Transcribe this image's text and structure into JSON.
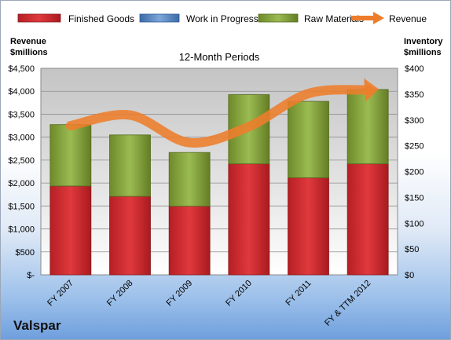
{
  "chart_data": {
    "type": "bar",
    "stacked": true,
    "title": "12-Month Periods",
    "company": "Valspar",
    "y_left_label": [
      "Revenue",
      "$millions"
    ],
    "y_right_label": [
      "Inventory",
      "$millions"
    ],
    "categories": [
      "FY 2007",
      "FY 2008",
      "FY 2009",
      "FY 2010",
      "FY 2011",
      "FY & TTM 2012"
    ],
    "y_left": {
      "min": 0,
      "max": 4500,
      "step": 500,
      "tick_labels": [
        "$-",
        "$500",
        "$1,000",
        "$1,500",
        "$2,000",
        "$2,500",
        "$3,000",
        "$3,500",
        "$4,000",
        "$4,500"
      ]
    },
    "y_right": {
      "min": 0,
      "max": 400,
      "step": 50,
      "tick_labels": [
        "$0",
        "$50",
        "$100",
        "$150",
        "$200",
        "$250",
        "$300",
        "$350",
        "$400"
      ]
    },
    "legend_position": "top",
    "grid": true,
    "series": [
      {
        "name": "Finished Goods",
        "kind": "bar",
        "axis": "right",
        "color": "#c0262b",
        "values": [
          172,
          152,
          133,
          215,
          188,
          215
        ]
      },
      {
        "name": "Work in Progress",
        "kind": "bar",
        "axis": "right",
        "color": "#4f81bd",
        "values": [
          0,
          0,
          0,
          0,
          0,
          0
        ]
      },
      {
        "name": "Raw Materials",
        "kind": "bar",
        "axis": "right",
        "color": "#8aa83f",
        "values": [
          119,
          119,
          104,
          134,
          148,
          144
        ]
      },
      {
        "name": "Revenue",
        "kind": "line",
        "axis": "left",
        "color": "#ee7d2b",
        "values": [
          3250,
          3480,
          2880,
          3230,
          3950,
          4030
        ]
      }
    ]
  }
}
